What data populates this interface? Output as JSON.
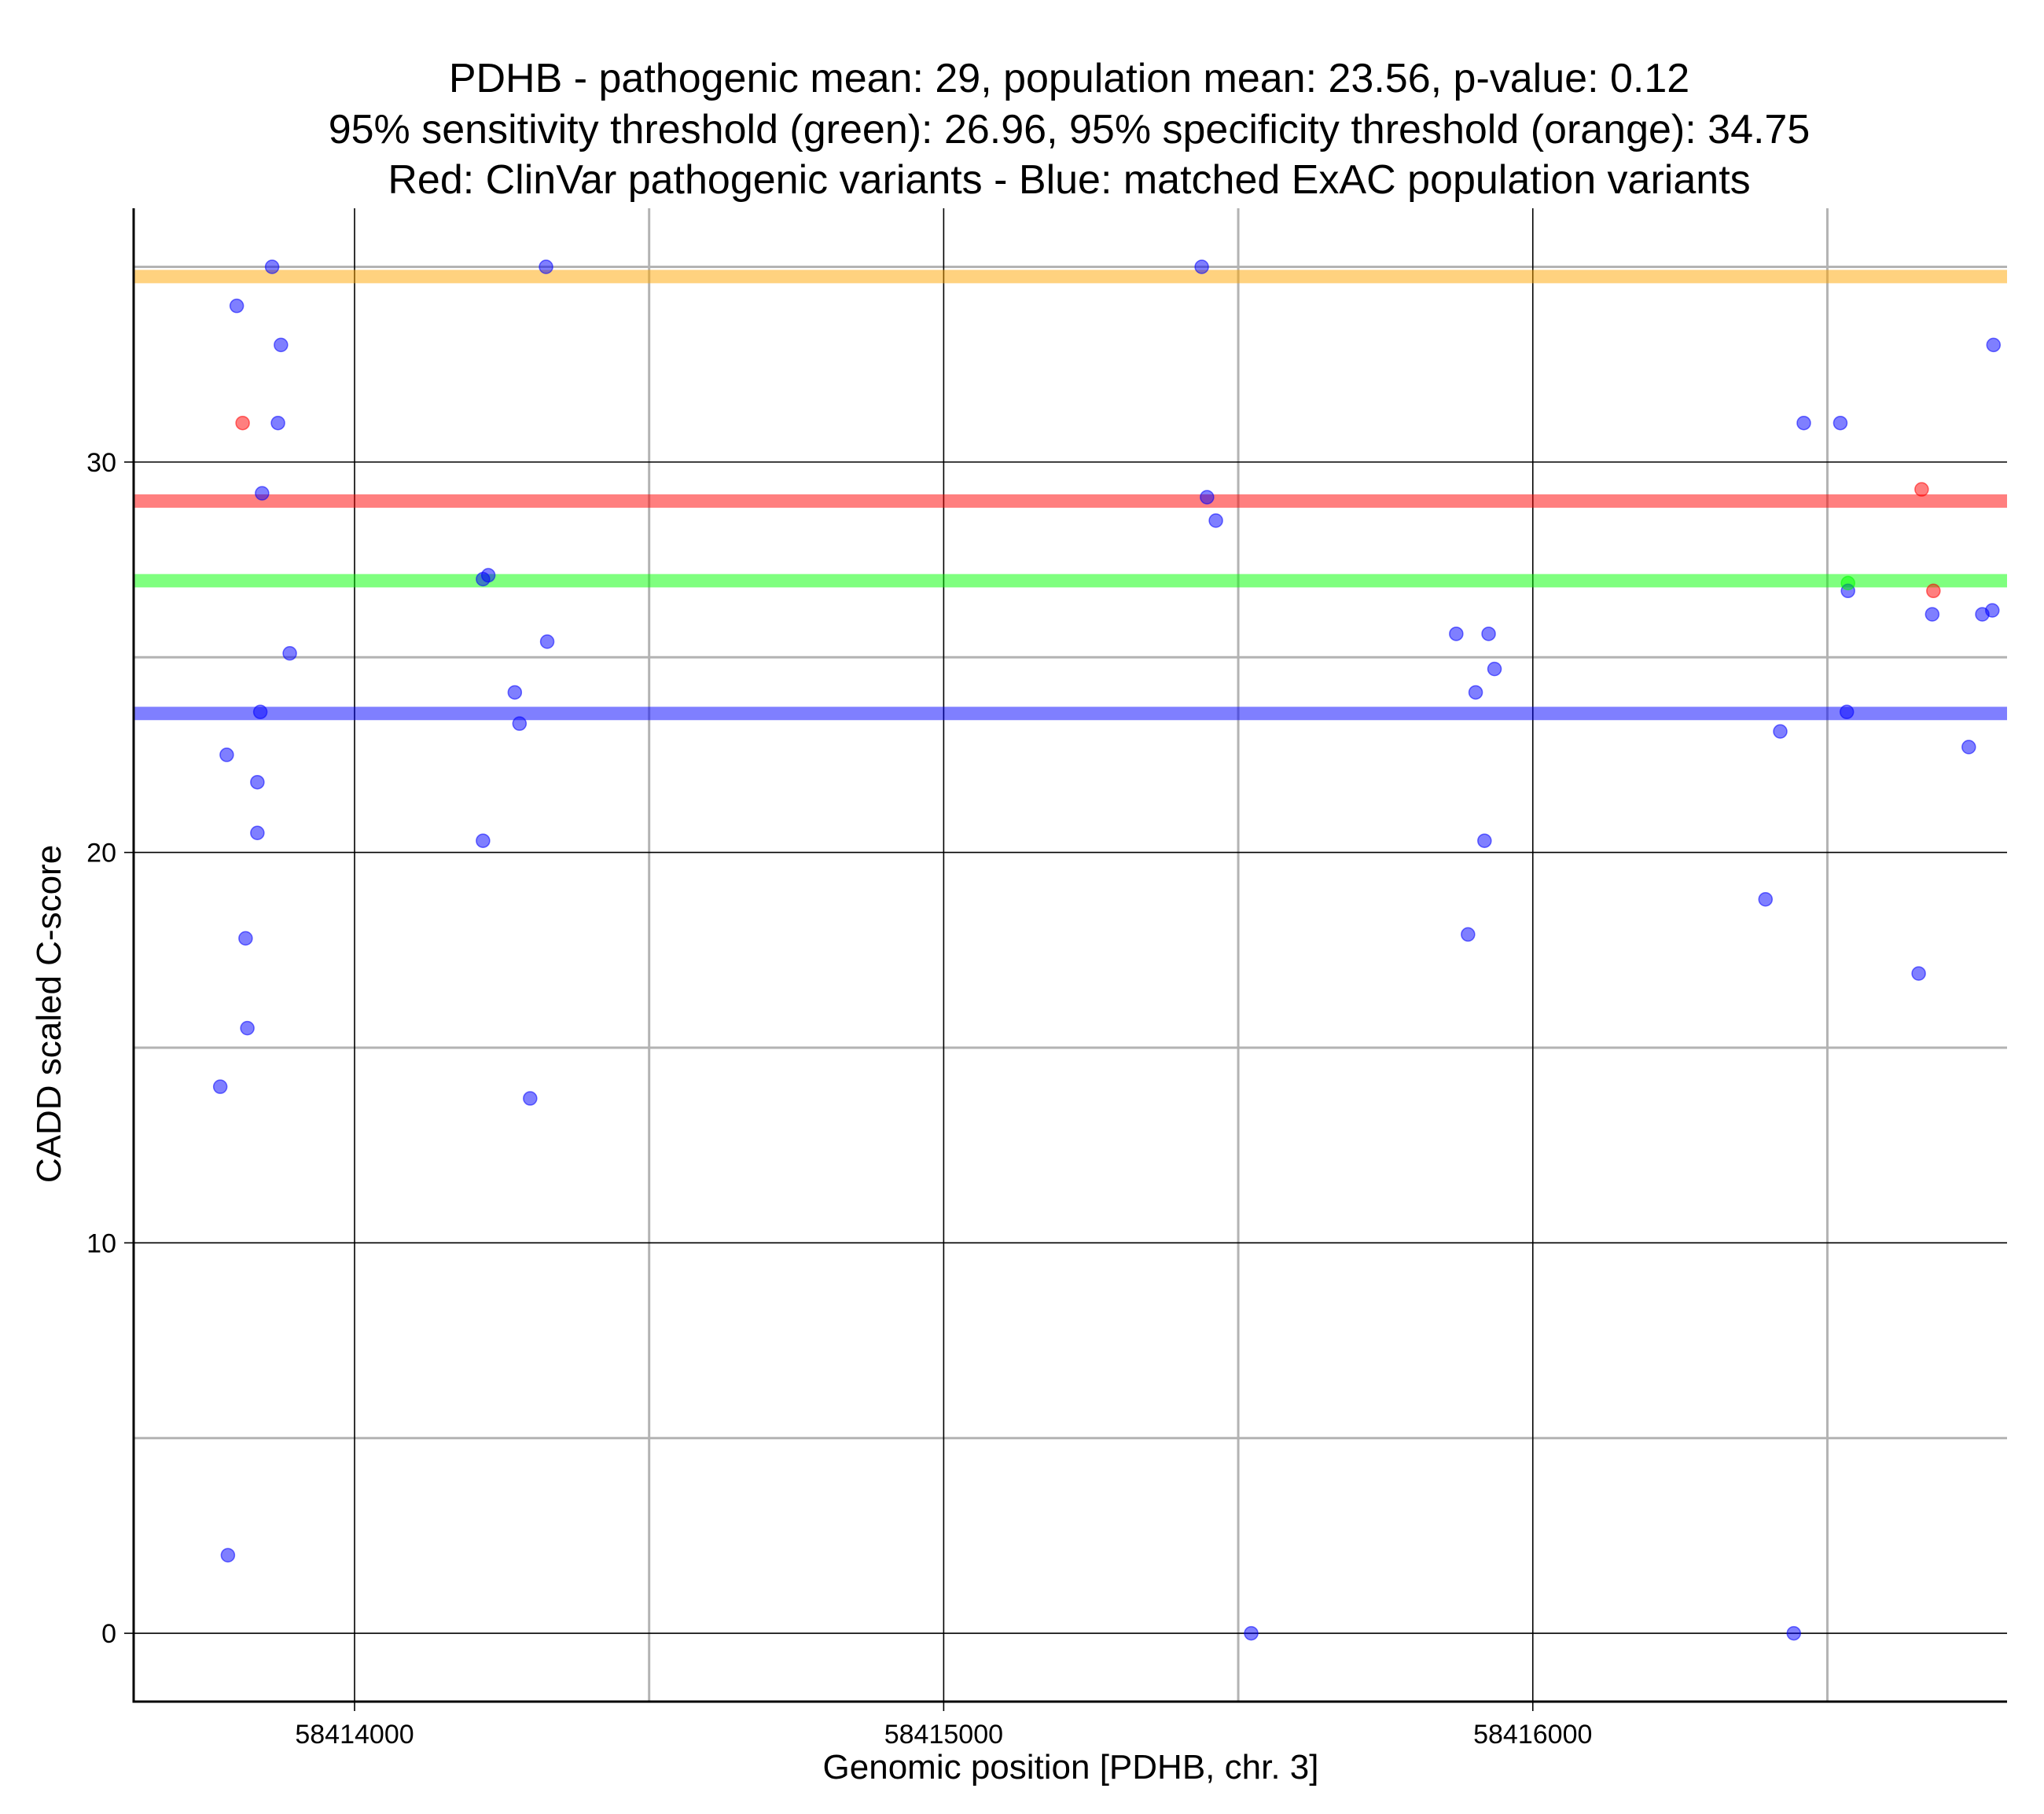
{
  "chart_data": {
    "type": "scatter",
    "title": [
      "PDHB - pathogenic mean: 29, population mean: 23.56, p-value: 0.12",
      "95% sensitivity threshold (green): 26.96, 95% specificity threshold (orange): 34.75",
      "Red: ClinVar pathogenic variants - Blue: matched ExAC population variants"
    ],
    "xlabel": "Genomic position [PDHB, chr. 3]",
    "ylabel": "CADD scaled C-score",
    "xlim": [
      58413625,
      58416805
    ],
    "ylim": [
      -1.75,
      36.5
    ],
    "x_ticks": [
      {
        "value": 58414000,
        "label": "58414000"
      },
      {
        "value": 58415000,
        "label": "58415000"
      },
      {
        "value": 58416000,
        "label": "58416000"
      }
    ],
    "x_minor_gridlines": [
      58414500,
      58415500,
      58416500
    ],
    "y_ticks": [
      {
        "value": 0,
        "label": "0"
      },
      {
        "value": 10,
        "label": "10"
      },
      {
        "value": 20,
        "label": "20"
      },
      {
        "value": 30,
        "label": "30"
      }
    ],
    "y_minor_gridlines": [
      5,
      15,
      25,
      35
    ],
    "reference_lines": [
      {
        "name": "specificity-threshold",
        "value": 34.75,
        "color": "#FFA500"
      },
      {
        "name": "pathogenic-mean",
        "value": 29,
        "color": "#FF0000"
      },
      {
        "name": "sensitivity-threshold",
        "value": 26.96,
        "color": "#00FF00"
      },
      {
        "name": "population-mean",
        "value": 23.56,
        "color": "#0000FF"
      }
    ],
    "colors": {
      "pathogenic": "#FF0000",
      "population": "#0000FF",
      "sensitivity": "#00FF00",
      "specificity": "#FFA500"
    },
    "series": [
      {
        "name": "ClinVar pathogenic variants",
        "color": "#FF0000",
        "points": [
          {
            "x": 58413810,
            "y": 31
          },
          {
            "x": 58416660,
            "y": 29.3
          },
          {
            "x": 58416680,
            "y": 26.7
          }
        ]
      },
      {
        "name": "matched ExAC population variants",
        "color": "#0000FF",
        "points": [
          {
            "x": 58413860,
            "y": 35
          },
          {
            "x": 58413800,
            "y": 34
          },
          {
            "x": 58413875,
            "y": 33
          },
          {
            "x": 58413870,
            "y": 31
          },
          {
            "x": 58413843,
            "y": 29.2
          },
          {
            "x": 58413890,
            "y": 25.1
          },
          {
            "x": 58413840,
            "y": 23.6
          },
          {
            "x": 58413783,
            "y": 22.5
          },
          {
            "x": 58413835,
            "y": 21.8
          },
          {
            "x": 58413835,
            "y": 20.5
          },
          {
            "x": 58413815,
            "y": 17.8
          },
          {
            "x": 58413818,
            "y": 15.5
          },
          {
            "x": 58413772,
            "y": 14
          },
          {
            "x": 58413785,
            "y": 2
          },
          {
            "x": 58414325,
            "y": 35
          },
          {
            "x": 58414227,
            "y": 27.1
          },
          {
            "x": 58414218,
            "y": 27
          },
          {
            "x": 58414327,
            "y": 25.4
          },
          {
            "x": 58414272,
            "y": 24.1
          },
          {
            "x": 58414280,
            "y": 23.3
          },
          {
            "x": 58414218,
            "y": 20.3
          },
          {
            "x": 58414298,
            "y": 13.7
          },
          {
            "x": 58415438,
            "y": 35
          },
          {
            "x": 58415447,
            "y": 29.1
          },
          {
            "x": 58415462,
            "y": 28.5
          },
          {
            "x": 58415522,
            "y": 0
          },
          {
            "x": 58415870,
            "y": 25.6
          },
          {
            "x": 58415925,
            "y": 25.6
          },
          {
            "x": 58415935,
            "y": 24.7
          },
          {
            "x": 58415903,
            "y": 24.1
          },
          {
            "x": 58415918,
            "y": 20.3
          },
          {
            "x": 58415890,
            "y": 17.9
          },
          {
            "x": 58416460,
            "y": 31
          },
          {
            "x": 58416522,
            "y": 31
          },
          {
            "x": 58416420,
            "y": 23.1
          },
          {
            "x": 58416395,
            "y": 18.8
          },
          {
            "x": 58416443,
            "y": 0
          },
          {
            "x": 58416535,
            "y": 26.7
          },
          {
            "x": 58416533,
            "y": 23.6
          },
          {
            "x": 58416655,
            "y": 16.9
          },
          {
            "x": 58416678,
            "y": 26.1
          },
          {
            "x": 58416740,
            "y": 22.7
          },
          {
            "x": 58416763,
            "y": 26.1
          },
          {
            "x": 58416780,
            "y": 26.2
          },
          {
            "x": 58416782,
            "y": 33
          }
        ]
      },
      {
        "name": "threshold overlap",
        "color": "#00FF00",
        "points": [
          {
            "x": 58416535,
            "y": 26.9
          }
        ]
      }
    ]
  }
}
